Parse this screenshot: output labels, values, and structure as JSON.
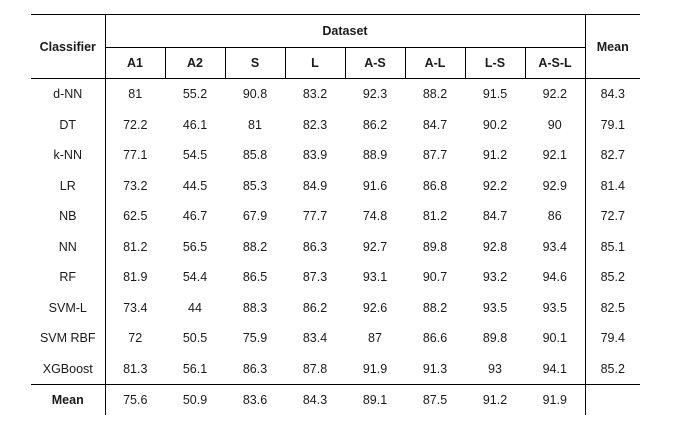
{
  "header": {
    "classifier": "Classifier",
    "dataset": "Dataset",
    "mean": "Mean",
    "datasets": [
      "A1",
      "A2",
      "S",
      "L",
      "A-S",
      "A-L",
      "L-S",
      "A-S-L"
    ]
  },
  "rows": [
    {
      "name": "d-NN",
      "values": [
        "81",
        "55.2",
        "90.8",
        "83.2",
        "92.3",
        "88.2",
        "91.5",
        "92.2"
      ],
      "mean": "84.3"
    },
    {
      "name": "DT",
      "values": [
        "72.2",
        "46.1",
        "81",
        "82.3",
        "86.2",
        "84.7",
        "90.2",
        "90"
      ],
      "mean": "79.1"
    },
    {
      "name": "k-NN",
      "values": [
        "77.1",
        "54.5",
        "85.8",
        "83.9",
        "88.9",
        "87.7",
        "91.2",
        "92.1"
      ],
      "mean": "82.7"
    },
    {
      "name": "LR",
      "values": [
        "73.2",
        "44.5",
        "85.3",
        "84.9",
        "91.6",
        "86.8",
        "92.2",
        "92.9"
      ],
      "mean": "81.4"
    },
    {
      "name": "NB",
      "values": [
        "62.5",
        "46.7",
        "67.9",
        "77.7",
        "74.8",
        "81.2",
        "84.7",
        "86"
      ],
      "mean": "72.7"
    },
    {
      "name": "NN",
      "values": [
        "81.2",
        "56.5",
        "88.2",
        "86.3",
        "92.7",
        "89.8",
        "92.8",
        "93.4"
      ],
      "mean": "85.1"
    },
    {
      "name": "RF",
      "values": [
        "81.9",
        "54.4",
        "86.5",
        "87.3",
        "93.1",
        "90.7",
        "93.2",
        "94.6"
      ],
      "mean": "85.2"
    },
    {
      "name": "SVM-L",
      "values": [
        "73.4",
        "44",
        "88.3",
        "86.2",
        "92.6",
        "88.2",
        "93.5",
        "93.5"
      ],
      "mean": "82.5"
    },
    {
      "name": "SVM RBF",
      "values": [
        "72",
        "50.5",
        "75.9",
        "83.4",
        "87",
        "86.6",
        "89.8",
        "90.1"
      ],
      "mean": "79.4"
    },
    {
      "name": "XGBoost",
      "values": [
        "81.3",
        "56.1",
        "86.3",
        "87.8",
        "91.9",
        "91.3",
        "93",
        "94.1"
      ],
      "mean": "85.2"
    }
  ],
  "footer": {
    "label": "Mean",
    "values": [
      "75.6",
      "50.9",
      "83.6",
      "84.3",
      "89.1",
      "87.5",
      "91.2",
      "91.9"
    ],
    "mean": ""
  }
}
